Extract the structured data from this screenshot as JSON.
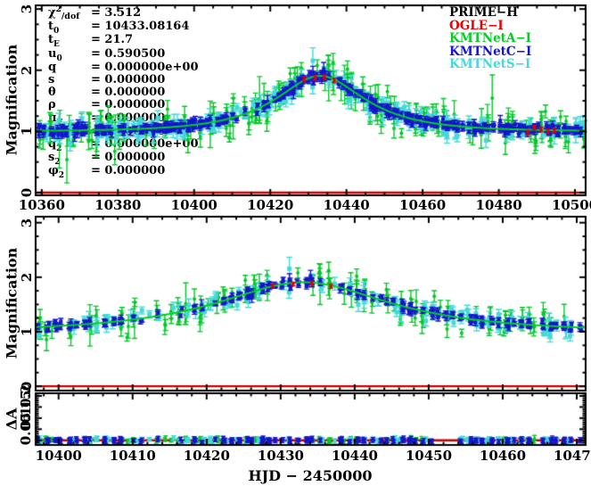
{
  "figure": {
    "background": "#ffffff"
  },
  "axis_titles": {
    "y_top": "Magnification",
    "y_middle": "Magnification",
    "y_residual": "ΔA",
    "x_bottom": "HJD − 2450000"
  },
  "legend": {
    "entries": [
      {
        "label": "PRIME−H",
        "color": "#000000"
      },
      {
        "label": "OGLE−I",
        "color": "#ee0000"
      },
      {
        "label": "KMTNetA−I",
        "color": "#00d020"
      },
      {
        "label": "KMTNetC−I",
        "color": "#1515cc"
      },
      {
        "label": "KMTNetS−I",
        "color": "#45d9d9"
      }
    ]
  },
  "fit_params": {
    "equals": "=",
    "rows": [
      {
        "base": "χ",
        "sup": "2",
        "tail": "/dof",
        "value": "3.512"
      },
      {
        "base": "t",
        "sub": "0",
        "value": "10433.08164"
      },
      {
        "base": "t",
        "sub": "E",
        "value": "21.7"
      },
      {
        "base": "u",
        "sub": "0",
        "value": "0.590500"
      },
      {
        "base": "q",
        "value": "0.000000e+00"
      },
      {
        "base": "s",
        "value": "0.000000"
      },
      {
        "base": "θ",
        "value": "0.000000"
      },
      {
        "base": "ρ",
        "value": "0.000000"
      },
      {
        "base": "π",
        "sub": "E",
        "value": "0.000000"
      },
      {
        "base": "γ",
        "value": "0.000000"
      },
      {
        "base": "q",
        "sub": "2",
        "value": "0.000000e+00"
      },
      {
        "base": "s",
        "sub": "2",
        "value": "0.000000"
      },
      {
        "base": "φ",
        "sub": "2",
        "value": "0.000000"
      }
    ]
  },
  "chart_data": [
    {
      "id": "top",
      "type": "scatter",
      "ylabel": "Magnification",
      "xlim": [
        10358.4,
        10502.8
      ],
      "ylim": [
        -0.044,
        3.06
      ],
      "xticks": {
        "values": [
          10360,
          10380,
          10400,
          10420,
          10440,
          10460,
          10480,
          10500
        ],
        "labels": [
          "10360",
          "10380",
          "10400",
          "10420",
          "10440",
          "10460",
          "10480",
          "10500"
        ],
        "minor_step": 5,
        "show_labels": true
      },
      "yticks": {
        "values": [
          0,
          1,
          2,
          3
        ],
        "labels": [
          "0",
          "1",
          "2",
          "3"
        ],
        "minor_step": 0.25
      },
      "baseline": {
        "y": 0,
        "color": "#cc0000"
      },
      "model": {
        "kind": "point_lens",
        "t0": 10433.08164,
        "tE": 21.7,
        "u0": 0.5905,
        "peak_magnification": 1.91,
        "color": "#00d020"
      }
    },
    {
      "id": "middle",
      "type": "scatter",
      "ylabel": "Magnification",
      "xlim": [
        10396.9,
        10471.2
      ],
      "ylim": [
        -0.08,
        3.11
      ],
      "xticks": {
        "values": [
          10400,
          10410,
          10420,
          10430,
          10440,
          10450,
          10460,
          10470
        ],
        "labels": [
          "10400",
          "10410",
          "10420",
          "10430",
          "10440",
          "10450",
          "10460",
          "10470"
        ],
        "minor_step": 2,
        "show_labels": false
      },
      "yticks": {
        "values": [
          0,
          1,
          2,
          3
        ],
        "labels": [
          "0",
          "1",
          "2",
          "3"
        ],
        "minor_step": 0.25
      },
      "baseline": {
        "y": 0,
        "color": "#cc0000"
      },
      "model": {
        "kind": "point_lens",
        "t0": 10433.08164,
        "tE": 21.7,
        "u0": 0.5905,
        "peak_magnification": 1.91,
        "color": "#00d020"
      }
    },
    {
      "id": "residual",
      "type": "scatter",
      "ylabel": "ΔA",
      "xlabel": "HJD − 2450000",
      "xlim": [
        10396.9,
        10471.2
      ],
      "ylim": [
        -0.0212,
        0.212
      ],
      "xticks": {
        "values": [
          10400,
          10410,
          10420,
          10430,
          10440,
          10450,
          10460,
          10470
        ],
        "labels": [
          "10400",
          "10410",
          "10420",
          "10430",
          "10440",
          "10450",
          "10460",
          "10470"
        ],
        "minor_step": 2,
        "show_labels": true
      },
      "yticks": {
        "values": [
          0,
          0.05,
          0.1,
          0.15,
          0.2
        ],
        "labels": [
          "0",
          "0.05",
          "0.1",
          "0.15",
          "0.2"
        ],
        "minor_step": 0.01
      },
      "zero_line": {
        "y": 0,
        "color": "#cc0000"
      },
      "gaps": [
        [
          10450.5,
          10453.5
        ]
      ]
    }
  ],
  "time_range": {
    "start": 10359,
    "end": 10502
  },
  "series": [
    {
      "name": "PRIME-H",
      "color": "#000000",
      "points": "none"
    },
    {
      "name": "OGLE-I",
      "color": "#dd0000",
      "marker": "square",
      "marker_px": 3,
      "seed": 47,
      "times": [
        10428.9,
        10431.7,
        10434.2,
        10436.8,
        10487.6,
        10489.3,
        10491.1,
        10492.9,
        10494.6
      ],
      "sigma": 0.02,
      "err": 0.035,
      "draw_order": 5
    },
    {
      "name": "KMTNetA-I",
      "color": "#00c828",
      "marker": "circle",
      "marker_px": 4,
      "seed": 11,
      "skip_prob": 0.3,
      "pts_min": 1,
      "pts_max": 4,
      "sigma": 0.12,
      "err_base": 0.07,
      "err_rand": 0.15,
      "outlier_prob": 0.07,
      "outlier_mult": 2.6,
      "draw_order": 1
    },
    {
      "name": "KMTNetS-I",
      "color": "#45d9d9",
      "marker": "square",
      "marker_px": 5,
      "seed": 33,
      "skip_prob": 0.22,
      "pts_min": 1,
      "pts_max": 4,
      "sigma": 0.07,
      "err_base": 0.05,
      "err_rand": 0.07,
      "outlier_prob": 0.05,
      "outlier_mult": 2.0,
      "draw_order": 2
    },
    {
      "name": "KMTNetC-I",
      "color": "#1515cc",
      "marker": "square",
      "marker_px": 4,
      "seed": 22,
      "skip_prob": 0.16,
      "pts_min": 2,
      "pts_max": 6,
      "sigma": 0.038,
      "err_base": 0.026,
      "err_rand": 0.034,
      "outlier_prob": 0.03,
      "outlier_mult": 1.8,
      "draw_order": 3
    }
  ],
  "residual_noise": {
    "sigma": 0.0045,
    "err_base": 0.006,
    "err_rand": 0.006
  }
}
